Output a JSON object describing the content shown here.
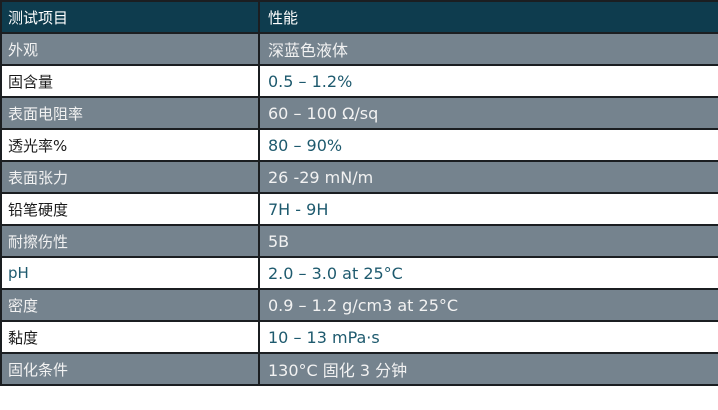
{
  "table": {
    "header": {
      "col1": "测试项目",
      "col2": "性能"
    },
    "rows": [
      {
        "label": "外观",
        "value": "深蓝色液体",
        "variant": "gray"
      },
      {
        "label": "固含量",
        "value": "0.5 – 1.2%",
        "variant": "white"
      },
      {
        "label": "表面电阻率",
        "value": "60 – 100 Ω/sq",
        "variant": "gray"
      },
      {
        "label": "透光率%",
        "value": "80 – 90%",
        "variant": "white"
      },
      {
        "label": "表面张力",
        "value": "26 -29 mN/m",
        "variant": "gray"
      },
      {
        "label": "铅笔硬度",
        "value": "7H - 9H",
        "variant": "white"
      },
      {
        "label": "耐擦伤性",
        "value": "5B",
        "variant": "gray"
      },
      {
        "label": "pH",
        "value": "2.0 – 3.0 at 25°C",
        "variant": "white",
        "label_color": "#1e5a6e"
      },
      {
        "label": "密度",
        "value": "0.9 – 1.2 g/cm3 at 25°C",
        "variant": "gray"
      },
      {
        "label": "黏度",
        "value": "10 – 13 mPa·s",
        "variant": "white"
      },
      {
        "label": "固化条件",
        "value": "130°C 固化 3 分钟",
        "variant": "gray"
      }
    ],
    "colors": {
      "header_bg": "#0e3c4e",
      "header_text": "#ffffff",
      "gray_row_bg": "#75838e",
      "gray_row_text": "#f2f2f2",
      "white_row_bg": "#ffffff",
      "white_row_label": "#1a1a1a",
      "value_text": "#1e5a6e",
      "border": "#1b1e21"
    }
  }
}
